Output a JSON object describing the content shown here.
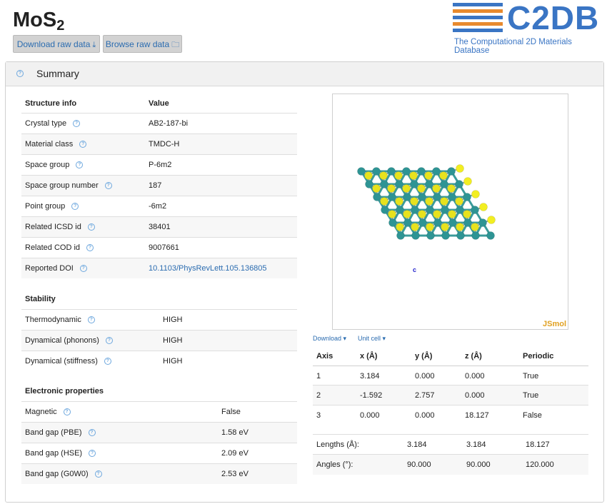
{
  "header": {
    "title_main": "MoS",
    "title_sub": "2",
    "download_label": "Download raw data",
    "browse_label": "Browse raw data",
    "logo_text": "C2DB",
    "logo_subtitle": "The Computational 2D Materials Database",
    "logo_colors": [
      "#3a75c4",
      "#e88a2e",
      "#3a75c4",
      "#e88a2e",
      "#3a75c4"
    ]
  },
  "summary": {
    "title": "Summary"
  },
  "structure": {
    "col1": "Structure info",
    "col2": "Value",
    "rows": [
      {
        "label": "Crystal type",
        "value": "AB2-187-bi"
      },
      {
        "label": "Material class",
        "value": "TMDC-H"
      },
      {
        "label": "Space group",
        "value": "P-6m2"
      },
      {
        "label": "Space group number",
        "value": "187"
      },
      {
        "label": "Point group",
        "value": "-6m2"
      },
      {
        "label": "Related ICSD id",
        "value": "38401"
      },
      {
        "label": "Related COD id",
        "value": "9007661"
      },
      {
        "label": "Reported DOI",
        "value": "10.1103/PhysRevLett.105.136805"
      }
    ]
  },
  "stability": {
    "title": "Stability",
    "rows": [
      {
        "label": "Thermodynamic",
        "value": "HIGH"
      },
      {
        "label": "Dynamical (phonons)",
        "value": "HIGH"
      },
      {
        "label": "Dynamical (stiffness)",
        "value": "HIGH"
      }
    ]
  },
  "electronic": {
    "title": "Electronic properties",
    "rows": [
      {
        "label": "Magnetic",
        "value": "False"
      },
      {
        "label": "Band gap (PBE)",
        "value": "1.58 eV"
      },
      {
        "label": "Band gap (HSE)",
        "value": "2.09 eV"
      },
      {
        "label": "Band gap (G0W0)",
        "value": "2.53 eV"
      }
    ]
  },
  "viewer": {
    "brand": "JSmol",
    "axis_label": "c",
    "download_menu": "Download",
    "unitcell_menu": "Unit cell"
  },
  "cell": {
    "headers": [
      "Axis",
      "x (Å)",
      "y (Å)",
      "z (Å)",
      "Periodic"
    ],
    "rows": [
      [
        "1",
        "3.184",
        "0.000",
        "0.000",
        "True"
      ],
      [
        "2",
        "-1.592",
        "2.757",
        "0.000",
        "True"
      ],
      [
        "3",
        "0.000",
        "0.000",
        "18.127",
        "False"
      ]
    ],
    "lengths": {
      "label": "Lengths (Å):",
      "values": [
        "3.184",
        "3.184",
        "18.127"
      ]
    },
    "angles": {
      "label": "Angles (°):",
      "values": [
        "90.000",
        "90.000",
        "120.000"
      ]
    }
  }
}
